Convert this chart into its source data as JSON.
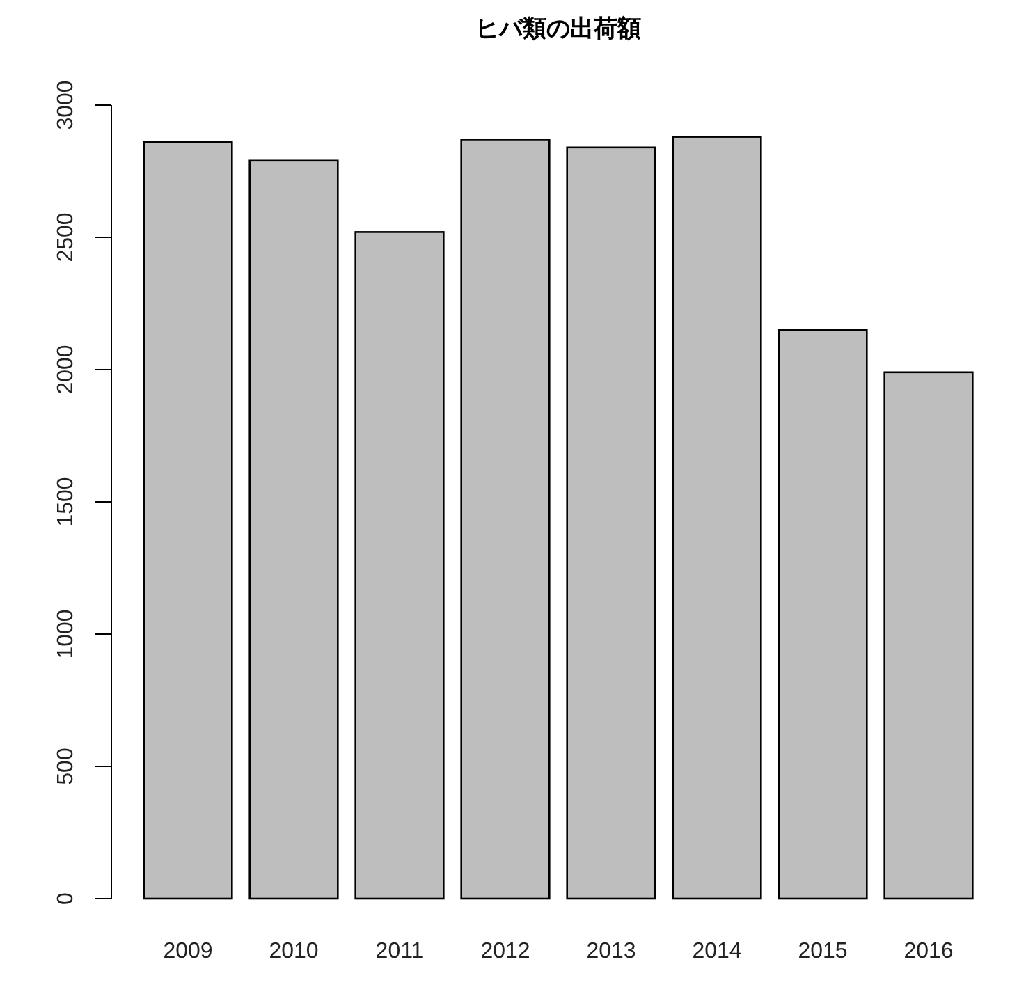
{
  "chart_data": {
    "type": "bar",
    "title": "ヒバ類の出荷額",
    "categories": [
      "2009",
      "2010",
      "2011",
      "2012",
      "2013",
      "2014",
      "2015",
      "2016"
    ],
    "values": [
      2860,
      2790,
      2520,
      2870,
      2840,
      2880,
      2150,
      1990
    ],
    "color": "#bebebe",
    "ylim": [
      0,
      3000
    ],
    "yticks": [
      0,
      500,
      1000,
      1500,
      2000,
      2500,
      3000
    ]
  }
}
